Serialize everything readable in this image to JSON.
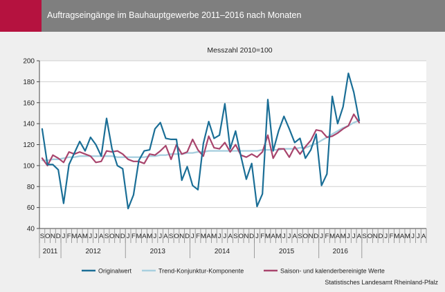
{
  "header": {
    "title": "Auftragseingänge im Bauhauptgewerbe 2011–2016 nach Monaten",
    "accent_color": "#b5123f",
    "bar_color": "#7f7f7f"
  },
  "source": "Statistisches Landesamt Rheinland-Pfalz",
  "chart_data": {
    "type": "line",
    "title": "Messzahl 2010=100",
    "ylim": [
      40,
      200
    ],
    "yticks": [
      40,
      60,
      80,
      100,
      120,
      140,
      160,
      180,
      200
    ],
    "grid": true,
    "legend_position": "bottom",
    "month_letters": [
      "S",
      "O",
      "N",
      "D",
      "J",
      "F",
      "M",
      "A",
      "M",
      "J",
      "J",
      "A",
      "S",
      "O",
      "N",
      "D",
      "J",
      "F",
      "M",
      "A",
      "M",
      "J",
      "J",
      "A",
      "S",
      "O",
      "N",
      "D",
      "J",
      "F",
      "M",
      "A",
      "M",
      "J",
      "J",
      "A",
      "S",
      "O",
      "N",
      "D",
      "J",
      "F",
      "M",
      "A",
      "M",
      "J",
      "J",
      "A",
      "S",
      "O",
      "N",
      "D",
      "J",
      "F",
      "M",
      "A",
      "M",
      "J",
      "J",
      "A",
      "S",
      "O",
      "N",
      "D",
      "J",
      "F",
      "M",
      "A",
      "M",
      "J",
      "J",
      "A"
    ],
    "year_groups": [
      {
        "label": "2011",
        "start": 0,
        "count": 4
      },
      {
        "label": "2012",
        "start": 4,
        "count": 12
      },
      {
        "label": "2013",
        "start": 16,
        "count": 12
      },
      {
        "label": "2014",
        "start": 28,
        "count": 12
      },
      {
        "label": "2015",
        "start": 40,
        "count": 12
      },
      {
        "label": "2016",
        "start": 52,
        "count": 8
      }
    ],
    "series": [
      {
        "name": "Originalwert",
        "color": "#1a6e96",
        "width": 2.2,
        "values": [
          135,
          101,
          101,
          96,
          64,
          101,
          112,
          123,
          114,
          127,
          120,
          109,
          145,
          116,
          100,
          97,
          59,
          72,
          105,
          114,
          115,
          135,
          141,
          126,
          125,
          125,
          86,
          99,
          81,
          77,
          121,
          142,
          126,
          129,
          159,
          116,
          133,
          109,
          87,
          102,
          61,
          73,
          163,
          114,
          133,
          147,
          135,
          122,
          126,
          107,
          115,
          130,
          81,
          92,
          166,
          140,
          156,
          188,
          170,
          143
        ]
      },
      {
        "name": "Trend-Konjunktur-Komponente",
        "color": "#a8cfdf",
        "width": 2.4,
        "values": [
          105,
          105,
          106,
          106,
          107,
          108,
          108,
          109,
          109,
          109,
          109,
          109,
          109,
          109,
          108,
          108,
          108,
          108,
          108,
          108,
          109,
          109,
          110,
          110,
          111,
          111,
          111,
          112,
          112,
          113,
          113,
          114,
          114,
          114,
          114,
          114,
          114,
          114,
          114,
          114,
          114,
          115,
          115,
          115,
          115,
          116,
          116,
          116,
          117,
          117,
          119,
          121,
          124,
          127,
          130,
          133,
          136,
          138,
          141,
          143
        ]
      },
      {
        "name": "Saison- und kalenderbereinigte Werte",
        "color": "#a8446c",
        "width": 2.2,
        "values": [
          107,
          100,
          110,
          107,
          103,
          113,
          111,
          113,
          111,
          109,
          103,
          104,
          114,
          113,
          114,
          111,
          106,
          104,
          104,
          102,
          111,
          110,
          114,
          119,
          106,
          120,
          111,
          113,
          125,
          115,
          109,
          128,
          117,
          116,
          122,
          113,
          120,
          110,
          108,
          111,
          108,
          113,
          129,
          107,
          116,
          116,
          108,
          118,
          111,
          118,
          124,
          134,
          133,
          127,
          128,
          131,
          135,
          138,
          149,
          141
        ]
      }
    ]
  }
}
